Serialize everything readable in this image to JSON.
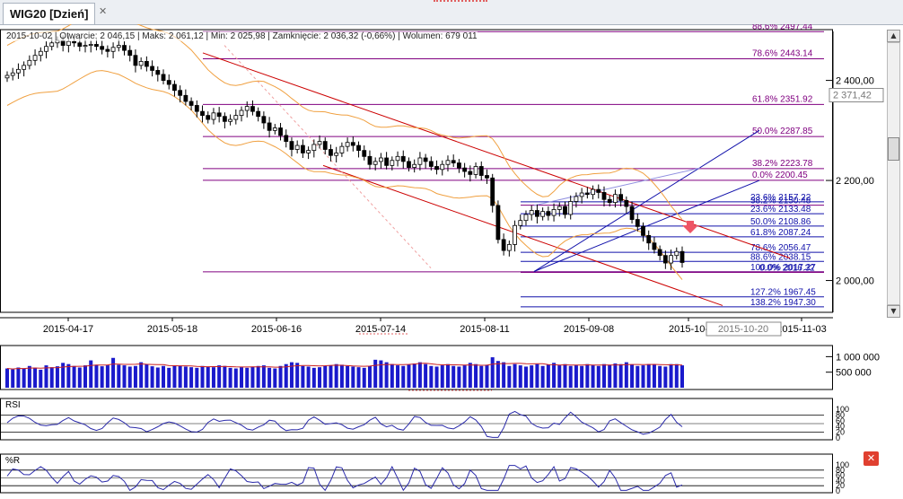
{
  "tab": {
    "title": "WIG20 [Dzień]",
    "close": "✕"
  },
  "info_line": "2015-10-02 | Otwarcie: 2 046,15 | Maks: 2 061,12 | Min: 2 025,98 | Zamknięcie: 2 036,32 (-0,66%) | Wolumen: 679 011",
  "colors": {
    "candle": "#000000",
    "bollinger": "#f0a040",
    "fib": "#800080",
    "channel_red": "#cc0000",
    "channel_blue": "#1010aa",
    "volume": "#1a1acc",
    "volume_ma": "#cc2222",
    "oscillator": "#2a2aaa",
    "arrow": "#ee5566"
  },
  "icons": {
    "arrow": "down-arrow-icon",
    "close_panel": "close-icon"
  },
  "close_panel_label": "✕",
  "chart_data": [
    {
      "type": "candlestick",
      "title": "WIG20 [Dzień]",
      "x_ticks": [
        "2015-04-17",
        "2015-05-18",
        "2015-06-16",
        "2015-07-14",
        "2015-08-11",
        "2015-09-08",
        "2015-10-",
        "2015-11-03"
      ],
      "cursor_date": "2015-10-20",
      "y_ticks": [
        "2 400,00",
        "2 200,00",
        "2 000,00"
      ],
      "y_range": [
        1940,
        2480
      ],
      "current_price_label": "2 371,42",
      "close_series": [
        2410,
        2415,
        2422,
        2430,
        2440,
        2450,
        2458,
        2468,
        2475,
        2480,
        2470,
        2478,
        2475,
        2468,
        2470,
        2472,
        2468,
        2462,
        2458,
        2466,
        2470,
        2460,
        2450,
        2430,
        2438,
        2428,
        2420,
        2412,
        2400,
        2392,
        2380,
        2370,
        2358,
        2350,
        2338,
        2330,
        2322,
        2335,
        2328,
        2318,
        2322,
        2330,
        2340,
        2348,
        2338,
        2328,
        2315,
        2300,
        2305,
        2290,
        2278,
        2262,
        2270,
        2255,
        2260,
        2272,
        2278,
        2262,
        2250,
        2255,
        2268,
        2276,
        2270,
        2260,
        2248,
        2232,
        2238,
        2245,
        2230,
        2240,
        2248,
        2238,
        2226,
        2232,
        2245,
        2238,
        2228,
        2222,
        2232,
        2240,
        2235,
        2225,
        2218,
        2212,
        2228,
        2210,
        2205,
        2150,
        2082,
        2060,
        2072,
        2110,
        2120,
        2132,
        2140,
        2128,
        2138,
        2130,
        2142,
        2148,
        2132,
        2158,
        2168,
        2175,
        2172,
        2182,
        2176,
        2162,
        2156,
        2172,
        2160,
        2148,
        2122,
        2108,
        2090,
        2075,
        2062,
        2050,
        2035,
        2050,
        2058,
        2036
      ],
      "volume_series": [
        620,
        590,
        650,
        610,
        700,
        640,
        580,
        720,
        660,
        690,
        800,
        760,
        700,
        650,
        720,
        880,
        740,
        690,
        720,
        960,
        740,
        720,
        680,
        700,
        820,
        760,
        690,
        650,
        700,
        640,
        720,
        700,
        680,
        660,
        640,
        700,
        680,
        660,
        720,
        700,
        640,
        620,
        660,
        640,
        680,
        700,
        720,
        640,
        620,
        700,
        760,
        820,
        800,
        700,
        680,
        640,
        660,
        700,
        720,
        760,
        740,
        700,
        680,
        660,
        640,
        700,
        900,
        880,
        820,
        760,
        720,
        700,
        740,
        780,
        820,
        760,
        700,
        680,
        720,
        760,
        700,
        680,
        720,
        800,
        760,
        700,
        740,
        980,
        860,
        820,
        700,
        760,
        720,
        680,
        720,
        760,
        700,
        740,
        800,
        720,
        760,
        700,
        720,
        700,
        760,
        720,
        700,
        760,
        740,
        780,
        760,
        820,
        740,
        700,
        720,
        760,
        740,
        700,
        680,
        760,
        760,
        720
      ],
      "volume_ticks": [
        "1 000 000",
        "500 000"
      ],
      "fibonacci_set_1": [
        {
          "label": "88.6% 2497.44"
        },
        {
          "label": "78.6% 2443.14"
        },
        {
          "label": "61.8% 2351.92"
        },
        {
          "label": "50.0% 2287.85"
        },
        {
          "label": "38.2% 2223.78"
        },
        {
          "label": "0.0% 2200.45"
        }
      ],
      "fibonacci_set_2": [
        {
          "label": "23.6% 2157.22"
        },
        {
          "label": "38.2% 2150.48"
        },
        {
          "label": "23.6% 2133.48"
        },
        {
          "label": "50.0% 2108.86"
        },
        {
          "label": "61.8% 2087.24"
        },
        {
          "label": "78.6% 2056.47"
        },
        {
          "label": "88.6% 2038.15"
        },
        {
          "label": "100.0% 2017.27"
        },
        {
          "label": "0.0% 2016.32"
        },
        {
          "label": "127.2% 1967.45"
        },
        {
          "label": "138.2% 1947.30"
        }
      ]
    },
    {
      "type": "line",
      "title": "RSI",
      "y_ticks": [
        "100",
        "80",
        "60",
        "40",
        "20",
        "0"
      ]
    },
    {
      "type": "line",
      "title": "%R",
      "y_ticks": [
        "100",
        "80",
        "60",
        "40",
        "20",
        "0"
      ]
    }
  ]
}
